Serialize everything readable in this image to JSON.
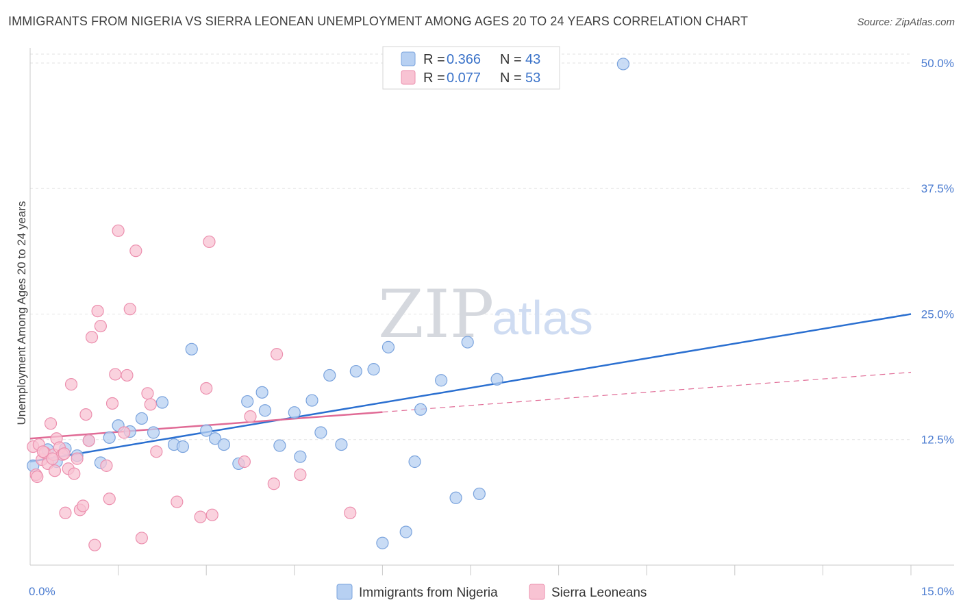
{
  "header": {
    "title": "IMMIGRANTS FROM NIGERIA VS SIERRA LEONEAN UNEMPLOYMENT AMONG AGES 20 TO 24 YEARS CORRELATION CHART",
    "source": "Source: ZipAtlas.com"
  },
  "watermark": {
    "zip": "ZIP",
    "atlas": "atlas"
  },
  "legend": {
    "rows": [
      {
        "r_label": "R =",
        "r_value": "0.366",
        "n_label": "N =",
        "n_value": "43"
      },
      {
        "r_label": "R =",
        "r_value": "0.077",
        "n_label": "N =",
        "n_value": "53"
      }
    ]
  },
  "bottom_legend": [
    "Immigrants from Nigeria",
    "Sierra Leoneans"
  ],
  "colors": {
    "blue_fill": "#b7d0f2",
    "blue_stroke": "#7aa3dd",
    "blue_line": "#2a6fd0",
    "pink_fill": "#f8c3d3",
    "pink_stroke": "#ec8fae",
    "pink_line": "#e06a95",
    "grid": "#e2e2e2",
    "axis": "#c8c8c8"
  },
  "chart_data": {
    "type": "scatter",
    "title": "IMMIGRANTS FROM NIGERIA VS SIERRA LEONEAN UNEMPLOYMENT AMONG AGES 20 TO 24 YEARS CORRELATION CHART",
    "xlabel": "",
    "ylabel": "Unemployment Among Ages 20 to 24 years",
    "xlim": [
      0,
      15
    ],
    "ylim": [
      0,
      51.5
    ],
    "x_tick_labels": [
      "0.0%",
      "15.0%"
    ],
    "y_ticks": [
      12.5,
      25.0,
      37.5,
      50.0
    ],
    "y_tick_labels": [
      "12.5%",
      "25.0%",
      "37.5%",
      "50.0%"
    ],
    "x_minor_ticks": [
      1.5,
      3.0,
      4.5,
      6.0,
      7.5,
      9.0,
      10.5,
      12.0,
      13.5
    ],
    "grid": true,
    "series": [
      {
        "name": "Immigrants from Nigeria",
        "color": "#7aa3dd",
        "r": 0.366,
        "n": 43,
        "trend": {
          "x": [
            0,
            15
          ],
          "y": [
            10.3,
            25.0
          ],
          "extends": false
        },
        "points": [
          [
            0.05,
            9.9
          ],
          [
            0.3,
            11.5
          ],
          [
            0.45,
            10.3
          ],
          [
            0.6,
            11.6
          ],
          [
            0.8,
            10.9
          ],
          [
            1.0,
            12.4
          ],
          [
            1.2,
            10.2
          ],
          [
            1.35,
            12.7
          ],
          [
            1.5,
            13.9
          ],
          [
            1.7,
            13.3
          ],
          [
            1.9,
            14.6
          ],
          [
            2.1,
            13.2
          ],
          [
            2.25,
            16.2
          ],
          [
            2.45,
            12.0
          ],
          [
            2.6,
            11.8
          ],
          [
            2.75,
            21.5
          ],
          [
            3.0,
            13.4
          ],
          [
            3.15,
            12.6
          ],
          [
            3.3,
            12.0
          ],
          [
            3.55,
            10.1
          ],
          [
            3.7,
            16.3
          ],
          [
            3.95,
            17.2
          ],
          [
            4.0,
            15.4
          ],
          [
            4.25,
            11.9
          ],
          [
            4.5,
            15.2
          ],
          [
            4.6,
            10.8
          ],
          [
            4.8,
            16.4
          ],
          [
            4.95,
            13.2
          ],
          [
            5.1,
            18.9
          ],
          [
            5.3,
            12.0
          ],
          [
            5.55,
            19.3
          ],
          [
            5.85,
            19.5
          ],
          [
            6.0,
            2.2
          ],
          [
            6.1,
            21.7
          ],
          [
            6.4,
            3.3
          ],
          [
            6.55,
            10.3
          ],
          [
            6.65,
            15.5
          ],
          [
            7.0,
            18.4
          ],
          [
            7.25,
            6.7
          ],
          [
            7.45,
            22.2
          ],
          [
            7.65,
            7.1
          ],
          [
            7.95,
            18.5
          ],
          [
            10.1,
            49.9
          ]
        ]
      },
      {
        "name": "Sierra Leoneans",
        "color": "#ec8fae",
        "r": 0.077,
        "n": 53,
        "trend": {
          "x": [
            0,
            15
          ],
          "y": [
            12.6,
            19.2
          ],
          "solid_until_x": 6.0
        },
        "points": [
          [
            0.05,
            11.8
          ],
          [
            0.1,
            9.0
          ],
          [
            0.15,
            12.0
          ],
          [
            0.2,
            10.5
          ],
          [
            0.25,
            11.2
          ],
          [
            0.3,
            10.1
          ],
          [
            0.35,
            14.1
          ],
          [
            0.4,
            11.0
          ],
          [
            0.45,
            12.6
          ],
          [
            0.5,
            11.7
          ],
          [
            0.55,
            11.0
          ],
          [
            0.6,
            5.2
          ],
          [
            0.65,
            9.6
          ],
          [
            0.7,
            18.0
          ],
          [
            0.75,
            9.1
          ],
          [
            0.8,
            10.6
          ],
          [
            0.85,
            5.5
          ],
          [
            0.9,
            5.9
          ],
          [
            0.95,
            15.0
          ],
          [
            1.0,
            12.4
          ],
          [
            1.05,
            22.7
          ],
          [
            1.1,
            2.0
          ],
          [
            1.15,
            25.3
          ],
          [
            1.2,
            23.8
          ],
          [
            1.3,
            9.9
          ],
          [
            1.35,
            6.6
          ],
          [
            1.4,
            16.1
          ],
          [
            1.45,
            19.0
          ],
          [
            1.5,
            33.3
          ],
          [
            1.6,
            13.2
          ],
          [
            1.65,
            18.9
          ],
          [
            1.7,
            25.5
          ],
          [
            1.8,
            31.3
          ],
          [
            1.9,
            2.7
          ],
          [
            2.0,
            17.1
          ],
          [
            2.05,
            16.0
          ],
          [
            2.15,
            11.3
          ],
          [
            2.5,
            6.3
          ],
          [
            2.9,
            4.8
          ],
          [
            3.0,
            17.6
          ],
          [
            3.05,
            32.2
          ],
          [
            3.1,
            5.0
          ],
          [
            3.65,
            10.3
          ],
          [
            3.75,
            14.8
          ],
          [
            4.15,
            8.1
          ],
          [
            4.2,
            21.0
          ],
          [
            4.6,
            9.0
          ],
          [
            5.45,
            5.2
          ],
          [
            0.12,
            8.8
          ],
          [
            0.22,
            11.3
          ],
          [
            0.38,
            10.6
          ],
          [
            0.42,
            9.4
          ],
          [
            0.58,
            11.1
          ]
        ]
      }
    ]
  }
}
